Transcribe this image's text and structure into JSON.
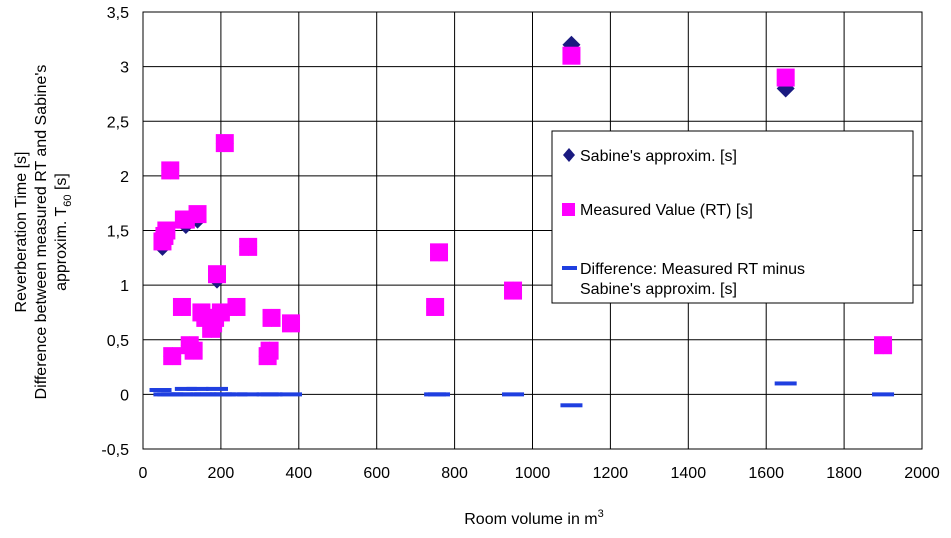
{
  "chart_data": {
    "type": "scatter",
    "xlabel": "Room volume in m",
    "xlabel_sup": "3",
    "ylabel_lines": [
      "Reverberation Time [s]",
      "Difference between measured RT and Sabine's",
      "approxim. T"
    ],
    "ylabel_sub": "60",
    "ylabel_tail": "  [s]",
    "xlim": [
      0,
      2000
    ],
    "ylim": [
      -0.5,
      3.5
    ],
    "x_ticks": [
      0,
      200,
      400,
      600,
      800,
      1000,
      1200,
      1400,
      1600,
      1800,
      2000
    ],
    "x_tick_labels": [
      "0",
      "200",
      "400",
      "600",
      "800",
      "1000",
      "1200",
      "1400",
      "1600",
      "1800",
      "2000"
    ],
    "y_ticks": [
      -0.5,
      0,
      0.5,
      1,
      1.5,
      2,
      2.5,
      3,
      3.5
    ],
    "y_tick_labels": [
      "-0,5",
      "0",
      "0,5",
      "1",
      "1,5",
      "2",
      "2,5",
      "3",
      "3,5"
    ],
    "grid": true,
    "legend_position": "right",
    "series": [
      {
        "name": "Sabine's approxim. [s]",
        "marker": "diamond",
        "color": "#1a1a80",
        "points": [
          [
            50,
            1.35
          ],
          [
            55,
            1.45
          ],
          [
            60,
            1.5
          ],
          [
            70,
            2.05
          ],
          [
            75,
            0.35
          ],
          [
            100,
            0.8
          ],
          [
            105,
            1.6
          ],
          [
            110,
            1.55
          ],
          [
            120,
            0.45
          ],
          [
            130,
            0.4
          ],
          [
            140,
            1.6
          ],
          [
            150,
            0.75
          ],
          [
            160,
            0.7
          ],
          [
            175,
            0.6
          ],
          [
            180,
            0.65
          ],
          [
            185,
            0.7
          ],
          [
            190,
            1.05
          ],
          [
            200,
            0.75
          ],
          [
            210,
            2.3
          ],
          [
            240,
            0.8
          ],
          [
            270,
            1.35
          ],
          [
            320,
            0.35
          ],
          [
            325,
            0.4
          ],
          [
            330,
            0.7
          ],
          [
            380,
            0.65
          ],
          [
            750,
            0.8
          ],
          [
            760,
            1.3
          ],
          [
            950,
            0.95
          ],
          [
            1100,
            3.2
          ],
          [
            1650,
            2.8
          ],
          [
            1900,
            0.45
          ]
        ]
      },
      {
        "name": "Measured Value (RT) [s]",
        "marker": "square",
        "color": "#ff00ff",
        "points": [
          [
            50,
            1.4
          ],
          [
            55,
            1.45
          ],
          [
            60,
            1.5
          ],
          [
            70,
            2.05
          ],
          [
            75,
            0.35
          ],
          [
            100,
            0.8
          ],
          [
            105,
            1.6
          ],
          [
            110,
            1.6
          ],
          [
            120,
            0.45
          ],
          [
            130,
            0.4
          ],
          [
            140,
            1.65
          ],
          [
            150,
            0.75
          ],
          [
            160,
            0.7
          ],
          [
            175,
            0.6
          ],
          [
            180,
            0.65
          ],
          [
            185,
            0.7
          ],
          [
            190,
            1.1
          ],
          [
            200,
            0.75
          ],
          [
            210,
            2.3
          ],
          [
            240,
            0.8
          ],
          [
            270,
            1.35
          ],
          [
            320,
            0.35
          ],
          [
            325,
            0.4
          ],
          [
            330,
            0.7
          ],
          [
            380,
            0.65
          ],
          [
            750,
            0.8
          ],
          [
            760,
            1.3
          ],
          [
            950,
            0.95
          ],
          [
            1100,
            3.1
          ],
          [
            1650,
            2.9
          ],
          [
            1900,
            0.45
          ]
        ]
      },
      {
        "name": "Difference: Measured RT minus Sabine's approxim. [s]",
        "legend_lines": [
          "Difference: Measured RT minus",
          "Sabine's approxim. [s]"
        ],
        "marker": "dash",
        "color": "#1f3fe0",
        "points": [
          [
            45,
            0.04
          ],
          [
            55,
            0.0
          ],
          [
            65,
            0.0
          ],
          [
            75,
            0.0
          ],
          [
            100,
            0.0
          ],
          [
            110,
            0.05
          ],
          [
            120,
            0.0
          ],
          [
            140,
            0.05
          ],
          [
            150,
            0.0
          ],
          [
            160,
            0.0
          ],
          [
            175,
            0.0
          ],
          [
            190,
            0.05
          ],
          [
            200,
            0.0
          ],
          [
            210,
            0.0
          ],
          [
            240,
            0.0
          ],
          [
            270,
            0.0
          ],
          [
            320,
            0.0
          ],
          [
            330,
            0.0
          ],
          [
            380,
            0.0
          ],
          [
            750,
            0.0
          ],
          [
            760,
            0.0
          ],
          [
            950,
            0.0
          ],
          [
            1100,
            -0.1
          ],
          [
            1650,
            0.1
          ],
          [
            1900,
            0.0
          ]
        ]
      }
    ]
  }
}
